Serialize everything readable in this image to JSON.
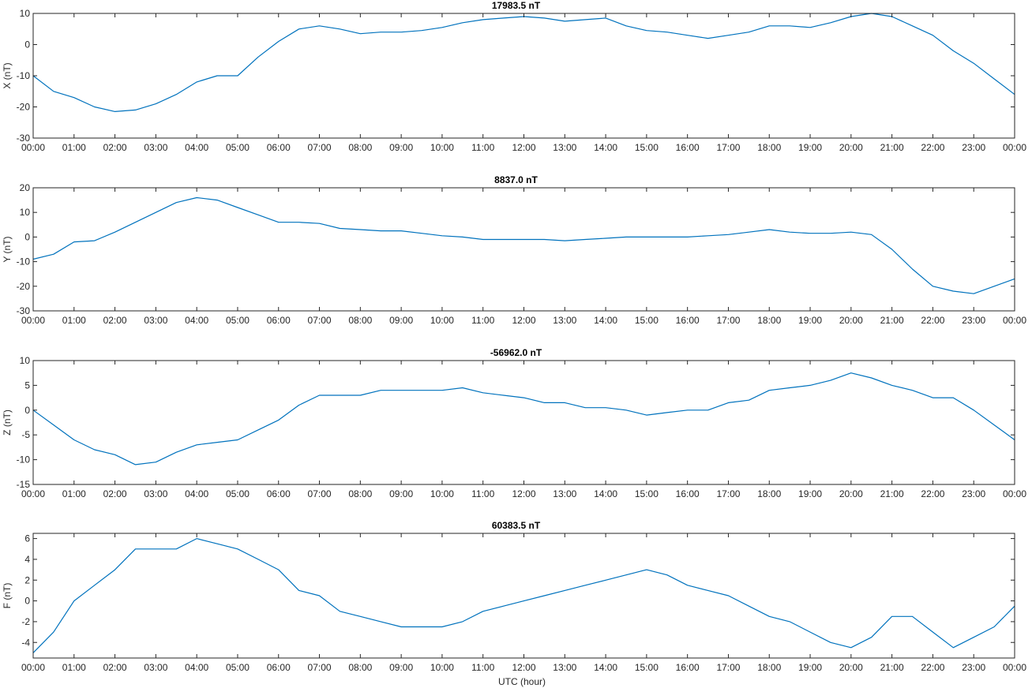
{
  "figure": {
    "xlabel": "UTC (hour)",
    "x_tick_labels": [
      "00:00",
      "01:00",
      "02:00",
      "03:00",
      "04:00",
      "05:00",
      "06:00",
      "07:00",
      "08:00",
      "09:00",
      "10:00",
      "11:00",
      "12:00",
      "13:00",
      "14:00",
      "15:00",
      "16:00",
      "17:00",
      "18:00",
      "19:00",
      "20:00",
      "21:00",
      "22:00",
      "23:00",
      "00:00"
    ],
    "line_color": "#0072BD"
  },
  "chart_data": [
    {
      "type": "line",
      "title": "17983.5 nT",
      "ylabel": "X (nT)",
      "xlim": [
        0,
        24
      ],
      "ylim": [
        -30,
        10
      ],
      "yticks": [
        -30,
        -20,
        -10,
        0,
        10
      ],
      "grid": false,
      "x": [
        0,
        0.5,
        1,
        1.5,
        2,
        2.5,
        3,
        3.5,
        4,
        4.5,
        5,
        5.5,
        6,
        6.5,
        7,
        7.5,
        8,
        8.5,
        9,
        9.5,
        10,
        10.5,
        11,
        11.5,
        12,
        12.5,
        13,
        13.5,
        14,
        14.5,
        15,
        15.5,
        16,
        16.5,
        17,
        17.5,
        18,
        18.5,
        19,
        19.5,
        20,
        20.5,
        21,
        21.5,
        22,
        22.5,
        23,
        23.5,
        24
      ],
      "values": [
        -10,
        -15,
        -17,
        -20,
        -21.5,
        -21,
        -19,
        -16,
        -12,
        -10,
        -10,
        -4,
        1,
        5,
        6,
        5,
        3.5,
        4,
        4,
        4.5,
        5.5,
        7,
        8,
        8.5,
        9,
        8.5,
        7.5,
        8,
        8.5,
        6,
        4.5,
        4,
        3,
        2,
        3,
        4,
        6,
        6,
        5.5,
        7,
        9,
        10,
        9,
        6,
        3,
        -2,
        -6,
        -11,
        -16
      ]
    },
    {
      "type": "line",
      "title": "8837.0 nT",
      "ylabel": "Y (nT)",
      "xlim": [
        0,
        24
      ],
      "ylim": [
        -30,
        20
      ],
      "yticks": [
        -30,
        -20,
        -10,
        0,
        10,
        20
      ],
      "grid": false,
      "x": [
        0,
        0.5,
        1,
        1.5,
        2,
        2.5,
        3,
        3.5,
        4,
        4.5,
        5,
        5.5,
        6,
        6.5,
        7,
        7.5,
        8,
        8.5,
        9,
        9.5,
        10,
        10.5,
        11,
        11.5,
        12,
        12.5,
        13,
        13.5,
        14,
        14.5,
        15,
        15.5,
        16,
        16.5,
        17,
        17.5,
        18,
        18.5,
        19,
        19.5,
        20,
        20.5,
        21,
        21.5,
        22,
        22.5,
        23,
        23.5,
        24
      ],
      "values": [
        -9,
        -7,
        -2,
        -1.5,
        2,
        6,
        10,
        14,
        16,
        15,
        12,
        9,
        6,
        6,
        5.5,
        3.5,
        3,
        2.5,
        2.5,
        1.5,
        0.5,
        0,
        -1,
        -1,
        -1,
        -1,
        -1.5,
        -1,
        -0.5,
        0,
        0,
        0,
        0,
        0.5,
        1,
        2,
        3,
        2,
        1.5,
        1.5,
        2,
        1,
        -5,
        -13,
        -20,
        -22,
        -23,
        -20,
        -17
      ]
    },
    {
      "type": "line",
      "title": "-56962.0 nT",
      "ylabel": "Z (nT)",
      "xlim": [
        0,
        24
      ],
      "ylim": [
        -15,
        10
      ],
      "yticks": [
        -15,
        -10,
        -5,
        0,
        5,
        10
      ],
      "grid": false,
      "x": [
        0,
        0.5,
        1,
        1.5,
        2,
        2.5,
        3,
        3.5,
        4,
        4.5,
        5,
        5.5,
        6,
        6.5,
        7,
        7.5,
        8,
        8.5,
        9,
        9.5,
        10,
        10.5,
        11,
        11.5,
        12,
        12.5,
        13,
        13.5,
        14,
        14.5,
        15,
        15.5,
        16,
        16.5,
        17,
        17.5,
        18,
        18.5,
        19,
        19.5,
        20,
        20.5,
        21,
        21.5,
        22,
        22.5,
        23,
        23.5,
        24
      ],
      "values": [
        0,
        -3,
        -6,
        -8,
        -9,
        -11,
        -10.5,
        -8.5,
        -7,
        -6.5,
        -6,
        -4,
        -2,
        1,
        3,
        3,
        3,
        4,
        4,
        4,
        4,
        4.5,
        3.5,
        3,
        2.5,
        1.5,
        1.5,
        0.5,
        0.5,
        0,
        -1,
        -0.5,
        0,
        0,
        1.5,
        2,
        4,
        4.5,
        5,
        6,
        7.5,
        6.5,
        5,
        4,
        2.5,
        2.5,
        0,
        -3,
        -6
      ]
    },
    {
      "type": "line",
      "title": "60383.5 nT",
      "ylabel": "F (nT)",
      "xlim": [
        0,
        24
      ],
      "ylim": [
        -5.5,
        6.5
      ],
      "yticks": [
        -4,
        -2,
        0,
        2,
        4,
        6
      ],
      "grid": false,
      "x": [
        0,
        0.5,
        1,
        1.5,
        2,
        2.5,
        3,
        3.5,
        4,
        4.5,
        5,
        5.5,
        6,
        6.5,
        7,
        7.5,
        8,
        8.5,
        9,
        9.5,
        10,
        10.5,
        11,
        11.5,
        12,
        12.5,
        13,
        13.5,
        14,
        14.5,
        15,
        15.5,
        16,
        16.5,
        17,
        17.5,
        18,
        18.5,
        19,
        19.5,
        20,
        20.5,
        21,
        21.5,
        22,
        22.5,
        23,
        23.5,
        24
      ],
      "values": [
        -5,
        -3,
        0,
        1.5,
        3,
        5,
        5,
        5,
        6,
        5.5,
        5,
        4,
        3,
        1,
        0.5,
        -1,
        -1.5,
        -2,
        -2.5,
        -2.5,
        -2.5,
        -2,
        -1,
        -0.5,
        0,
        0.5,
        1,
        1.5,
        2,
        2.5,
        3,
        2.5,
        1.5,
        1,
        0.5,
        -0.5,
        -1.5,
        -2,
        -3,
        -4,
        -4.5,
        -3.5,
        -1.5,
        -1.5,
        -3,
        -4.5,
        -3.5,
        -2.5,
        -0.5
      ]
    }
  ]
}
